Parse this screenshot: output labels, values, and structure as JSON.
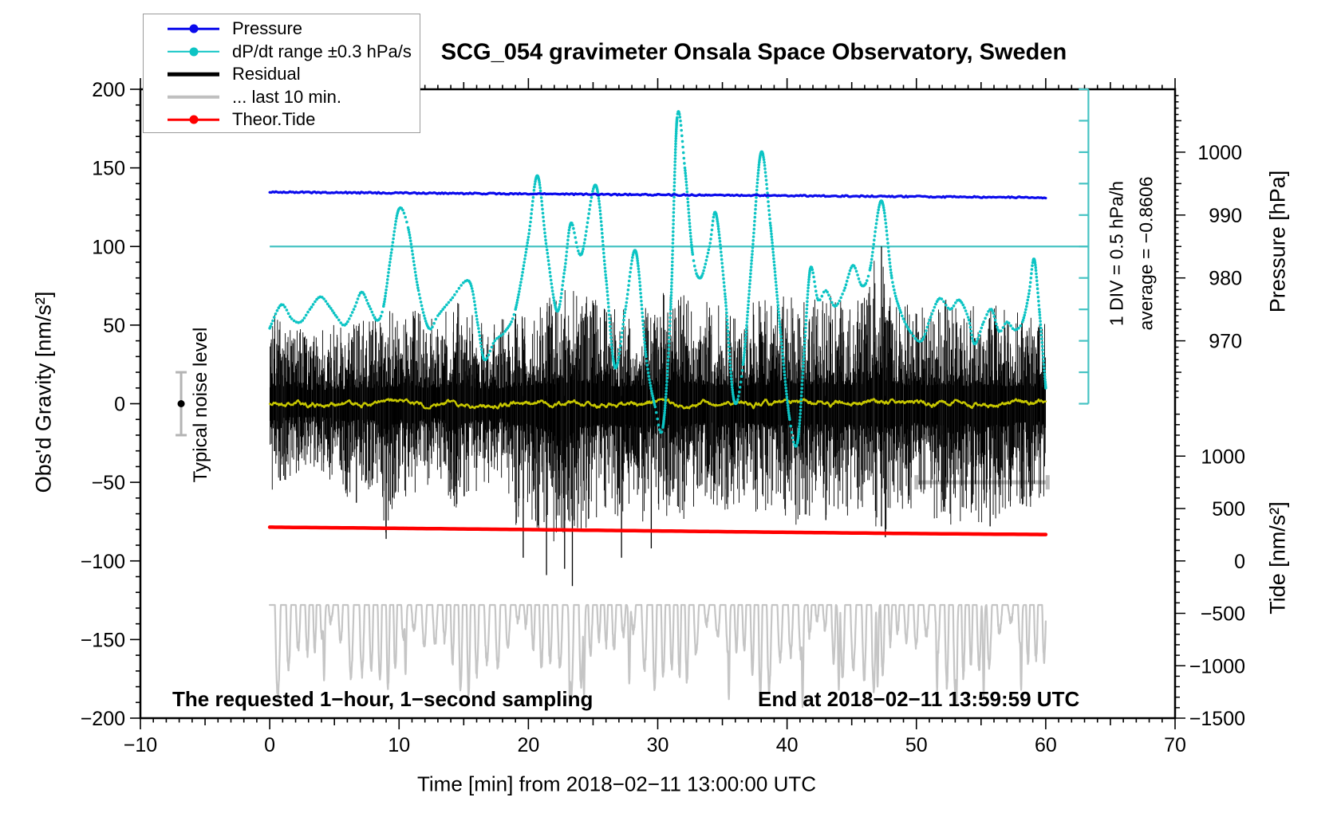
{
  "title": "SCG_054 gravimeter Onsala Space Observatory, Sweden",
  "legend": {
    "items": [
      {
        "label": "Pressure",
        "color": "#0b0bec",
        "marker": "dot-line"
      },
      {
        "label": "dP/dt range ±0.3 hPa/s",
        "color": "#0cc4c4",
        "marker": "dot-line"
      },
      {
        "label": "Residual",
        "color": "#000000",
        "marker": "line"
      },
      {
        "label": "... last 10 min.",
        "color": "#bfbfbf",
        "marker": "line"
      },
      {
        "label": "Theor.Tide",
        "color": "#ff0000",
        "marker": "dot-line"
      }
    ]
  },
  "annotations": {
    "noise_label": "Typical noise level",
    "div_label": "1 DIV = 0.5 hPa/h",
    "average_label": "average = −0.8606",
    "sampling_note": "The requested 1−hour, 1−second sampling",
    "end_note": "End at 2018−02−11 13:59:59 UTC"
  },
  "chart_data": {
    "type": "line",
    "title": "SCG_054 gravimeter Onsala Space Observatory, Sweden",
    "x_axis": {
      "label": "Time [min] from 2018−02−11 13:00:00 UTC",
      "min": -10,
      "max": 70,
      "major_tick": 10,
      "medium_tick": 5,
      "minor_tick": 1,
      "data_start": 0,
      "data_end": 60
    },
    "y_gravity": {
      "label": "Obs'd Gravity [nm/s²]",
      "min": -200,
      "max": 200,
      "major_tick": 50,
      "minor_tick": 10
    },
    "y_pressure": {
      "label": "Pressure [hPa]",
      "labeled_ticks": [
        1000,
        990,
        980,
        970
      ],
      "minor_tick": 1,
      "medium_tick": 5,
      "map_gravity0": 960,
      "map_gravity200": 1010
    },
    "y_tide": {
      "label": "Tide [nm/s²]",
      "min": -1500,
      "max": 1500,
      "major_tick": 500,
      "minor_tick": 100,
      "labeled_ticks": [
        1000,
        500,
        0,
        -500,
        -1000,
        -1500
      ],
      "map_gravity-200": -1500,
      "map_gravity0": 1500
    },
    "meta": {
      "dpdt_div_hpa_per_h": 0.5,
      "dpdt_average_hpa_per_h": -0.8606,
      "noise_level_nm_s2": 20
    },
    "series": [
      {
        "name": "Pressure",
        "axis": "pressure",
        "color": "#0b0bec",
        "style": "noisy-line",
        "width": 3.2,
        "points": [
          [
            0,
            993.65
          ],
          [
            60,
            992.79
          ]
        ]
      },
      {
        "name": "dP/dt range",
        "axis": "gravity",
        "color": "#0cc4c4",
        "style": "dotted",
        "points": [
          [
            0,
            48
          ],
          [
            0.9,
            63
          ],
          [
            1.7,
            54
          ],
          [
            2.4,
            52
          ],
          [
            3.1,
            60
          ],
          [
            3.9,
            68
          ],
          [
            4.6,
            62
          ],
          [
            5.2,
            55
          ],
          [
            5.8,
            50
          ],
          [
            6.5,
            60
          ],
          [
            7.1,
            71
          ],
          [
            7.7,
            62
          ],
          [
            8.3,
            53
          ],
          [
            8.8,
            62
          ],
          [
            9.4,
            96
          ],
          [
            10,
            124
          ],
          [
            10.7,
            112
          ],
          [
            11.5,
            72
          ],
          [
            12.3,
            48
          ],
          [
            13,
            56
          ],
          [
            14,
            66
          ],
          [
            15.4,
            78
          ],
          [
            16.1,
            50
          ],
          [
            16.6,
            28
          ],
          [
            17.4,
            40
          ],
          [
            18.2,
            46
          ],
          [
            19,
            60
          ],
          [
            20,
            106
          ],
          [
            20.7,
            145
          ],
          [
            21.4,
            100
          ],
          [
            22.2,
            59
          ],
          [
            22.8,
            85
          ],
          [
            23.3,
            115
          ],
          [
            24.1,
            95
          ],
          [
            25.2,
            139
          ],
          [
            26,
            80
          ],
          [
            26.7,
            23
          ],
          [
            27.5,
            60
          ],
          [
            28.3,
            97
          ],
          [
            29.1,
            30
          ],
          [
            29.8,
            -2
          ],
          [
            30.4,
            -15
          ],
          [
            31,
            60
          ],
          [
            31.5,
            182
          ],
          [
            32.1,
            150
          ],
          [
            32.7,
            95
          ],
          [
            33.3,
            80
          ],
          [
            34,
            100
          ],
          [
            34.5,
            121
          ],
          [
            35.2,
            70
          ],
          [
            35.9,
            2
          ],
          [
            36.6,
            25
          ],
          [
            37.3,
            95
          ],
          [
            38,
            160
          ],
          [
            38.7,
            115
          ],
          [
            39.5,
            45
          ],
          [
            40.2,
            -10
          ],
          [
            40.8,
            -25
          ],
          [
            41.3,
            30
          ],
          [
            41.8,
            86
          ],
          [
            42.4,
            66
          ],
          [
            43,
            72
          ],
          [
            43.7,
            62
          ],
          [
            44.4,
            72
          ],
          [
            45.1,
            88
          ],
          [
            45.8,
            75
          ],
          [
            46.4,
            85
          ],
          [
            47.3,
            129
          ],
          [
            48.1,
            80
          ],
          [
            48.8,
            58
          ],
          [
            49.6,
            45
          ],
          [
            50.4,
            40
          ],
          [
            51.1,
            55
          ],
          [
            51.8,
            67
          ],
          [
            52.6,
            60
          ],
          [
            53.3,
            66
          ],
          [
            54,
            55
          ],
          [
            54.5,
            38
          ],
          [
            55.2,
            52
          ],
          [
            55.8,
            60
          ],
          [
            56.4,
            46
          ],
          [
            57,
            52
          ],
          [
            57.6,
            47
          ],
          [
            58.2,
            52
          ],
          [
            58.7,
            70
          ],
          [
            59.1,
            92
          ],
          [
            59.5,
            60
          ],
          [
            60,
            10
          ]
        ]
      },
      {
        "name": "Residual",
        "axis": "gravity",
        "color": "#000000",
        "style": "noise-band",
        "envelope_per_min": [
          [
            -58,
            58
          ],
          [
            -50,
            62
          ],
          [
            -45,
            52
          ],
          [
            -44,
            46
          ],
          [
            -46,
            48
          ],
          [
            -50,
            52
          ],
          [
            -63,
            50
          ],
          [
            -52,
            55
          ],
          [
            -58,
            56
          ],
          [
            -86,
            60
          ],
          [
            -56,
            58
          ],
          [
            -62,
            62
          ],
          [
            -55,
            56
          ],
          [
            -50,
            58
          ],
          [
            -66,
            68
          ],
          [
            -70,
            62
          ],
          [
            -56,
            55
          ],
          [
            -50,
            50
          ],
          [
            -52,
            55
          ],
          [
            -78,
            58
          ],
          [
            -70,
            65
          ],
          [
            -85,
            70
          ],
          [
            -88,
            68
          ],
          [
            -95,
            75
          ],
          [
            -82,
            78
          ],
          [
            -76,
            72
          ],
          [
            -70,
            65
          ],
          [
            -80,
            60
          ],
          [
            -65,
            62
          ],
          [
            -80,
            65
          ],
          [
            -68,
            64
          ],
          [
            -76,
            80
          ],
          [
            -78,
            72
          ],
          [
            -70,
            68
          ],
          [
            -65,
            65
          ],
          [
            -70,
            62
          ],
          [
            -66,
            60
          ],
          [
            -68,
            65
          ],
          [
            -70,
            68
          ],
          [
            -72,
            65
          ],
          [
            -76,
            70
          ],
          [
            -78,
            72
          ],
          [
            -72,
            68
          ],
          [
            -74,
            70
          ],
          [
            -75,
            68
          ],
          [
            -72,
            65
          ],
          [
            -78,
            70
          ],
          [
            -80,
            100
          ],
          [
            -85,
            72
          ],
          [
            -70,
            65
          ],
          [
            -68,
            62
          ],
          [
            -72,
            65
          ],
          [
            -75,
            68
          ],
          [
            -78,
            65
          ],
          [
            -72,
            62
          ],
          [
            -78,
            68
          ],
          [
            -75,
            65
          ],
          [
            -70,
            62
          ],
          [
            -65,
            60
          ],
          [
            -68,
            62
          ],
          [
            -58,
            55
          ]
        ],
        "spikes": [
          [
            6.7,
            -63
          ],
          [
            9.0,
            -86
          ],
          [
            19.6,
            -98
          ],
          [
            21.4,
            -109
          ],
          [
            22.8,
            -105
          ],
          [
            23.4,
            -116
          ],
          [
            27.2,
            -98
          ],
          [
            29.5,
            -92
          ],
          [
            43.0,
            -74
          ],
          [
            47.3,
            100
          ],
          [
            47.3,
            -78
          ],
          [
            47.6,
            -85
          ],
          [
            55.7,
            -78
          ]
        ]
      },
      {
        "name": "Residual smoothed",
        "axis": "gravity",
        "color": "#c6c600",
        "style": "jitter-line",
        "width": 2.4,
        "points": [
          [
            0,
            0
          ],
          [
            60,
            0
          ]
        ],
        "jitter": 3
      },
      {
        "name": "Residual last 10 min expanded",
        "axis": "gravity",
        "color": "#c5c5c5",
        "style": "oscillation",
        "width": 2.2,
        "center": -128,
        "amp_base": 34,
        "period_min": 0.72,
        "top_clip": -80,
        "deep_dips": [
          [
            4.2,
            -176
          ],
          [
            10.5,
            -172
          ],
          [
            23.2,
            -190
          ],
          [
            24.3,
            -186
          ],
          [
            27.8,
            -178
          ],
          [
            35.5,
            -188
          ],
          [
            41.2,
            -193
          ],
          [
            44.0,
            -182
          ],
          [
            47.0,
            -180
          ],
          [
            51.6,
            -183
          ],
          [
            53.1,
            -190
          ],
          [
            55.2,
            -186
          ],
          [
            58.1,
            -182
          ]
        ]
      },
      {
        "name": "Theor.Tide",
        "axis": "tide",
        "color": "#ff0000",
        "style": "line",
        "width": 4.5,
        "points": [
          [
            0,
            322
          ],
          [
            10,
            311
          ],
          [
            20,
            299
          ],
          [
            30,
            286
          ],
          [
            40,
            273
          ],
          [
            50,
            261
          ],
          [
            60,
            252
          ]
        ]
      }
    ],
    "reference_marks": {
      "dpdt_zero_line": {
        "axis": "gravity",
        "value": 100,
        "x_from": 0,
        "x_to": 63.3,
        "color": "#46c3c3"
      },
      "dpdt_scale_bar": {
        "x": 63.3,
        "g_from": 0,
        "g_to": 200,
        "tick_step": 20,
        "color": "#46c3c3"
      },
      "last10_bar": {
        "axis": "gravity",
        "value": -50,
        "x_from": 50,
        "x_to": 60.15,
        "color": "#bcbcbc"
      },
      "noise_marker": {
        "x": -6.85,
        "g": 0,
        "error": 20,
        "bar_color": "#b4b4b4",
        "dot_color": "#000000"
      }
    }
  }
}
